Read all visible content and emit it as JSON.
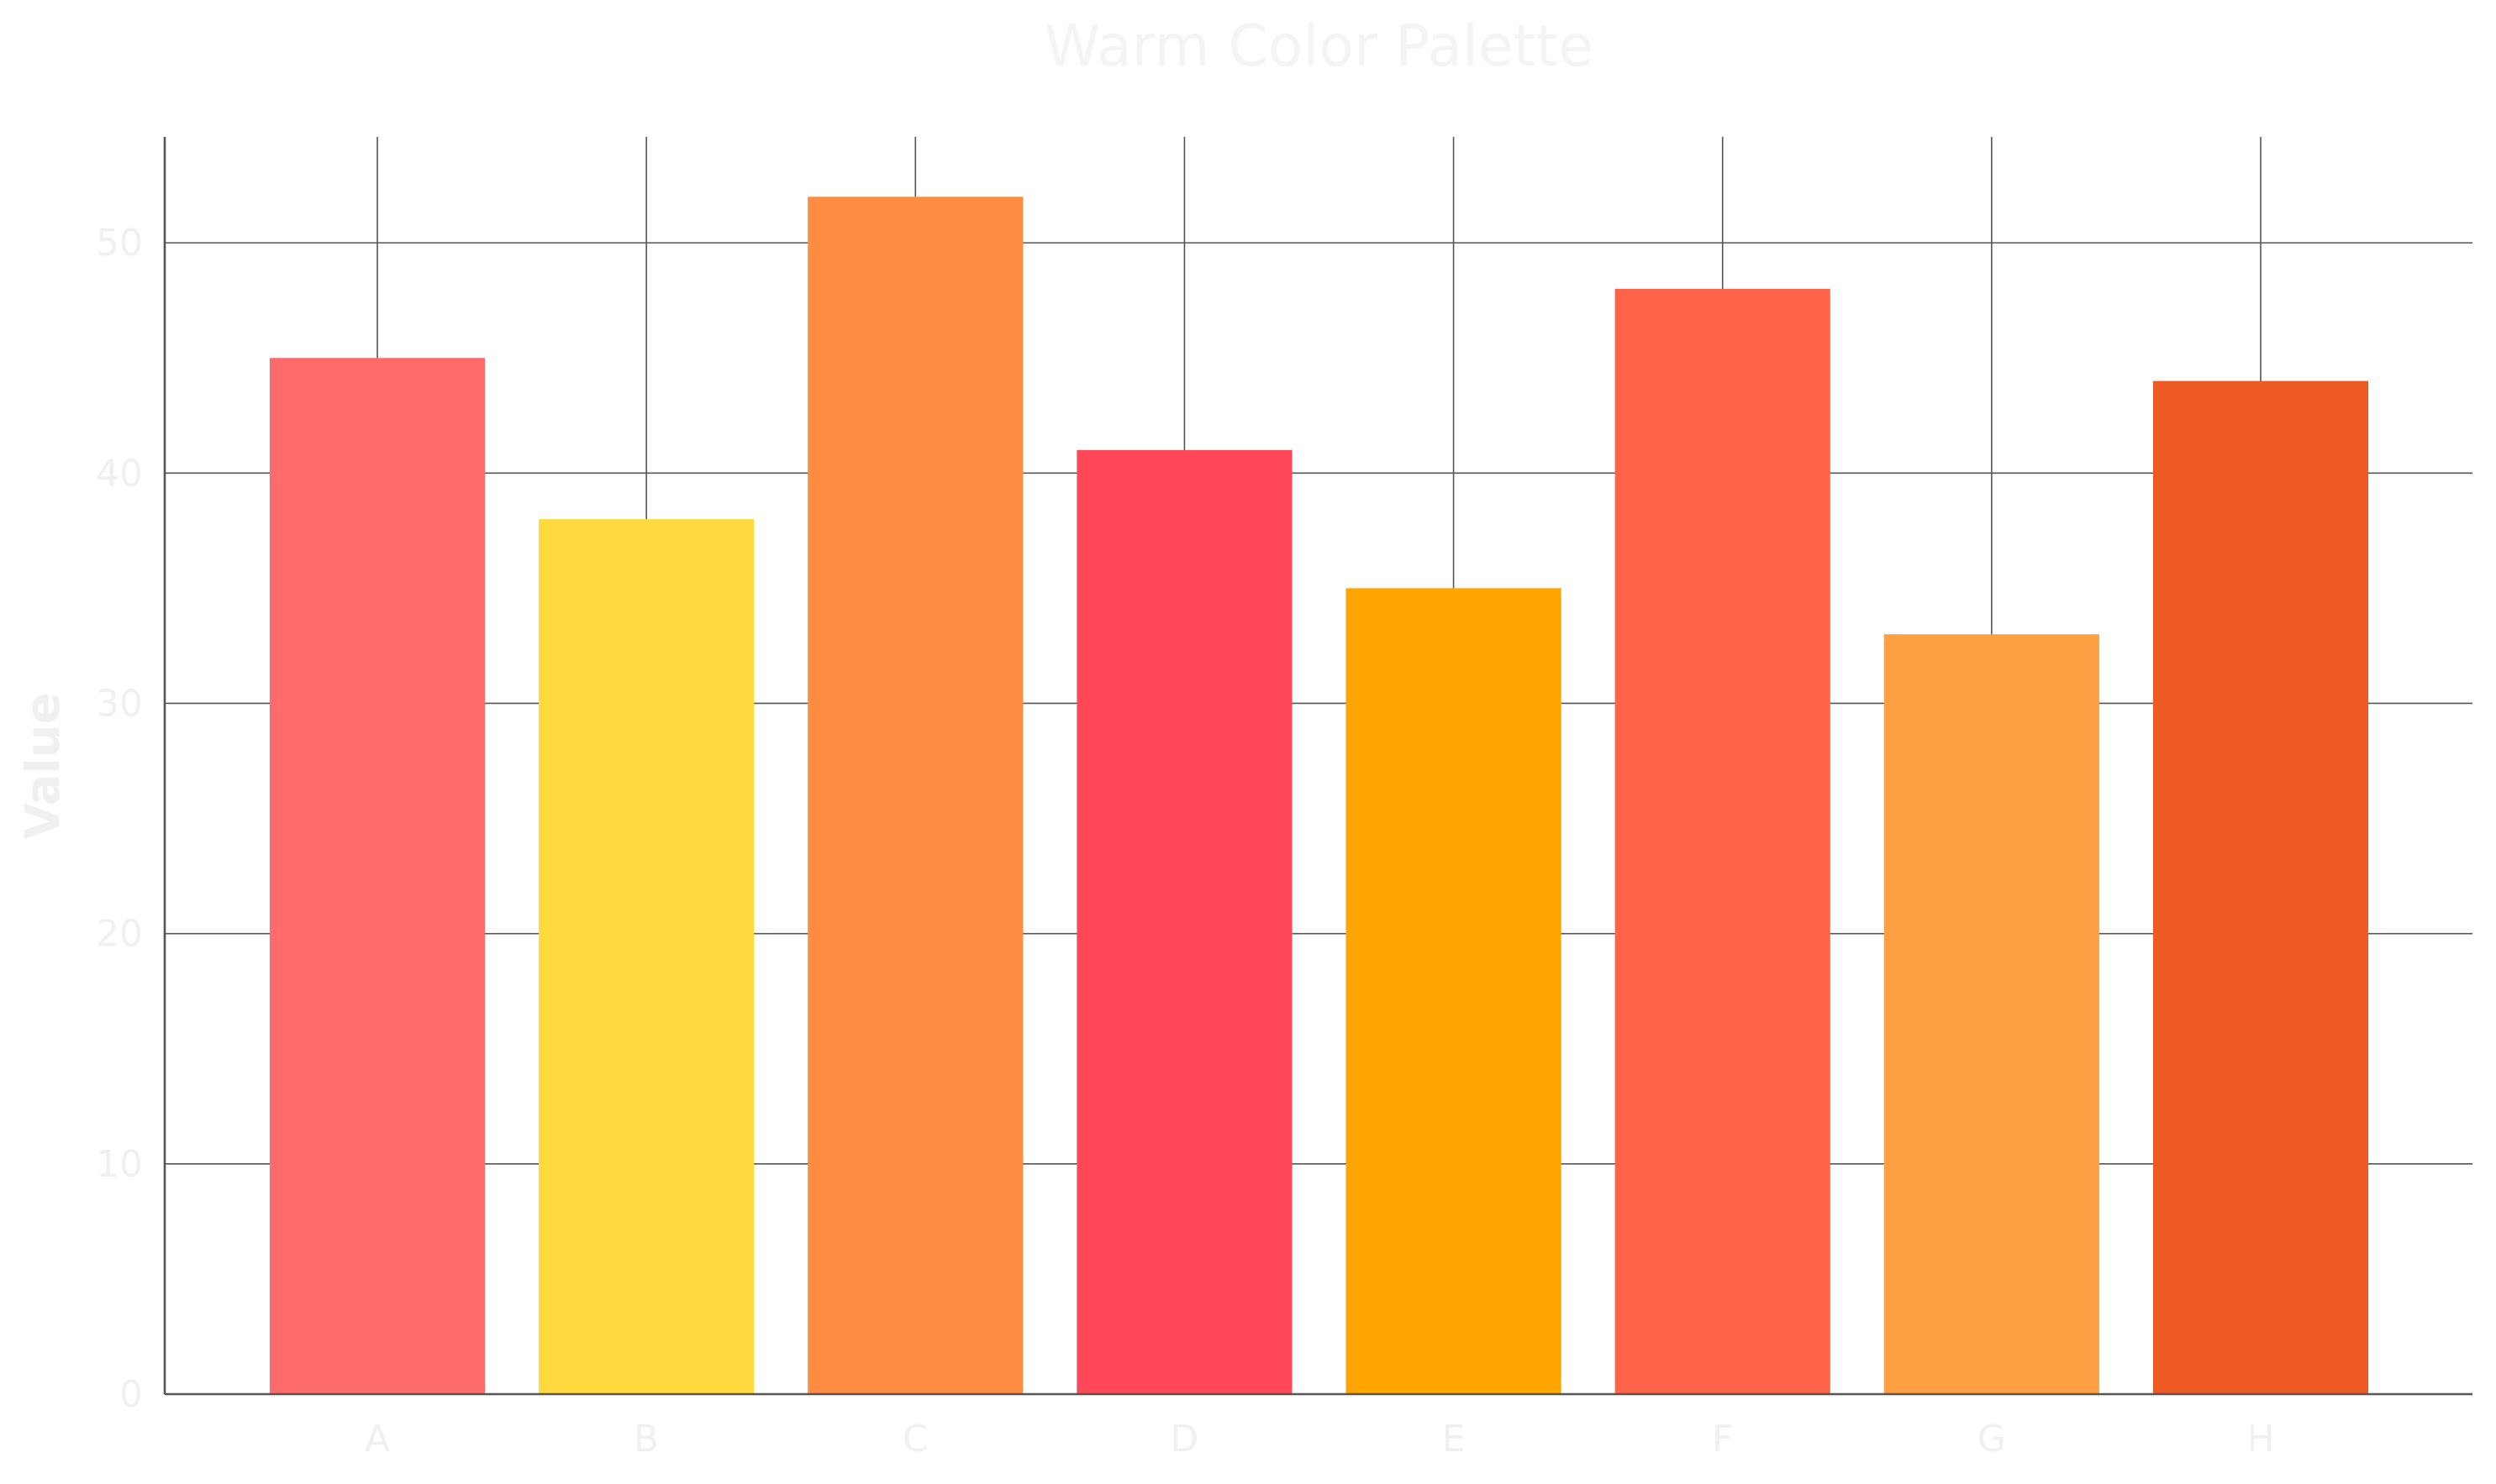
{
  "chart_data": {
    "type": "bar",
    "title": "Warm Color Palette",
    "xlabel": "",
    "ylabel": "Value",
    "categories": [
      "A",
      "B",
      "C",
      "D",
      "E",
      "F",
      "G",
      "H"
    ],
    "values": [
      45,
      38,
      52,
      41,
      35,
      48,
      33,
      44
    ],
    "colors": [
      "#ff6b6b",
      "#ffd93d",
      "#ff8c42",
      "#ff4757",
      "#ffa502",
      "#ff6348",
      "#ff9f43",
      "#ee5a24"
    ],
    "ylim": [
      0,
      54.6
    ],
    "yticks": [
      0,
      10,
      20,
      30,
      40,
      50
    ],
    "grid": true,
    "legend": "none"
  }
}
